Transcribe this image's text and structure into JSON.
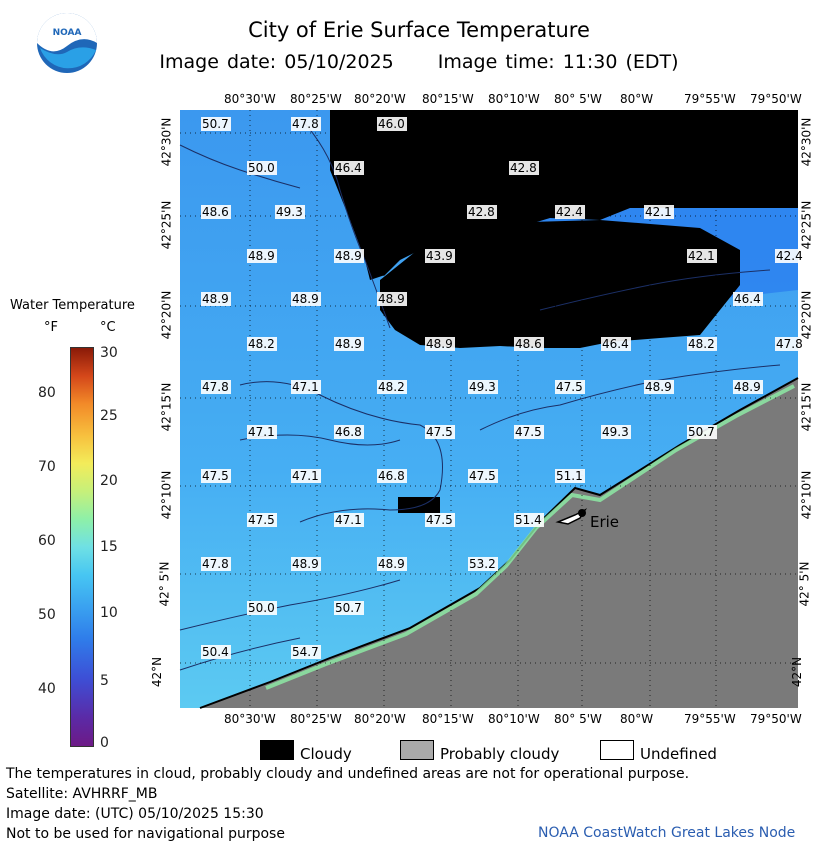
{
  "title": "City of Erie Surface Temperature",
  "image_date_label": "Image date: 05/10/2025",
  "image_time_label": "Image time: 11:30 (EDT)",
  "legend": {
    "title": "Water Temperature",
    "unit_f": "°F",
    "unit_c": "°C",
    "f_ticks": [
      "80",
      "70",
      "60",
      "50",
      "40"
    ],
    "c_ticks": [
      "30",
      "25",
      "20",
      "15",
      "10",
      "5",
      "0"
    ]
  },
  "lon_labels": [
    "80°30'W",
    "80°25'W",
    "80°20'W",
    "80°15'W",
    "80°10'W",
    "80° 5'W",
    "80°W",
    "79°55'W",
    "79°50'W"
  ],
  "lat_labels": [
    "42°30'N",
    "42°25'N",
    "42°20'N",
    "42°15'N",
    "42°10'N",
    "42° 5'N",
    "42°N"
  ],
  "city_label": "Erie",
  "temperatures": [
    {
      "v": "50.7"
    },
    {
      "v": "47.8"
    },
    {
      "v": "46.0"
    },
    {
      "v": "50.0"
    },
    {
      "v": "46.4"
    },
    {
      "v": "42.8"
    },
    {
      "v": "48.6"
    },
    {
      "v": "49.3"
    },
    {
      "v": "42.8"
    },
    {
      "v": "42.4"
    },
    {
      "v": "42.1"
    },
    {
      "v": "48.9"
    },
    {
      "v": "48.9"
    },
    {
      "v": "43.9"
    },
    {
      "v": "42.1"
    },
    {
      "v": "42.4"
    },
    {
      "v": "48.9"
    },
    {
      "v": "48.9"
    },
    {
      "v": "48.9"
    },
    {
      "v": "46.4"
    },
    {
      "v": "48.2"
    },
    {
      "v": "48.9"
    },
    {
      "v": "48.9"
    },
    {
      "v": "48.6"
    },
    {
      "v": "46.4"
    },
    {
      "v": "48.2"
    },
    {
      "v": "47.8"
    },
    {
      "v": "47.8"
    },
    {
      "v": "47.1"
    },
    {
      "v": "48.2"
    },
    {
      "v": "49.3"
    },
    {
      "v": "47.5"
    },
    {
      "v": "48.9"
    },
    {
      "v": "48.9"
    },
    {
      "v": "47.1"
    },
    {
      "v": "46.8"
    },
    {
      "v": "47.5"
    },
    {
      "v": "47.5"
    },
    {
      "v": "49.3"
    },
    {
      "v": "50.7"
    },
    {
      "v": "47.5"
    },
    {
      "v": "47.1"
    },
    {
      "v": "46.8"
    },
    {
      "v": "47.5"
    },
    {
      "v": "51.1"
    },
    {
      "v": "47.5"
    },
    {
      "v": "47.1"
    },
    {
      "v": "47.5"
    },
    {
      "v": "51.4"
    },
    {
      "v": "47.8"
    },
    {
      "v": "48.9"
    },
    {
      "v": "48.9"
    },
    {
      "v": "53.2"
    },
    {
      "v": "50.0"
    },
    {
      "v": "50.7"
    },
    {
      "v": "50.4"
    },
    {
      "v": "54.7"
    }
  ],
  "map_legend": {
    "cloudy": "Cloudy",
    "probably_cloudy": "Probably cloudy",
    "undefined": "Undefined"
  },
  "footer": {
    "note": "The temperatures in cloud, probably cloudy and undefined areas are not for operational purpose.",
    "satellite": "Satellite: AVHRRF_MB",
    "utc_date": "Image date: (UTC) 05/10/2025  15:30",
    "nav": "Not to be used for navigational purpose",
    "credit": "NOAA CoastWatch Great Lakes Node"
  },
  "colors": {
    "water": "#3aa6f2",
    "deep": "#1e7ae8",
    "land": "#777777",
    "cloud": "#000000"
  }
}
